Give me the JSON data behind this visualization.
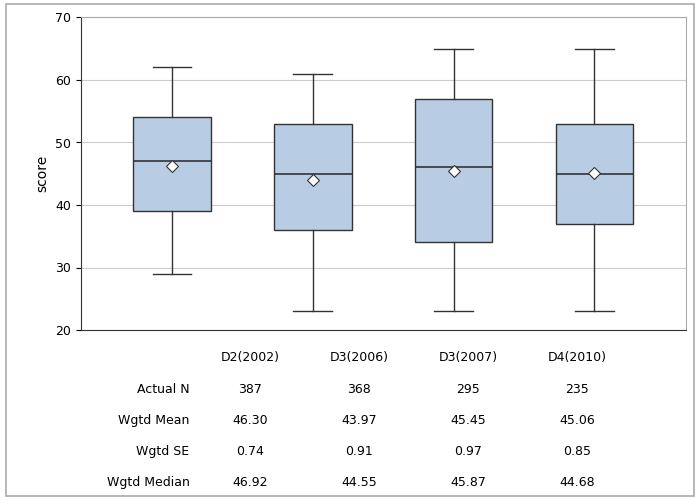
{
  "categories": [
    "D2(2002)",
    "D3(2006)",
    "D3(2007)",
    "D4(2010)"
  ],
  "boxes": [
    {
      "whislo": 29,
      "q1": 39,
      "med": 47,
      "q3": 54,
      "whishi": 62,
      "mean": 46.3
    },
    {
      "whislo": 23,
      "q1": 36,
      "med": 45,
      "q3": 53,
      "whishi": 61,
      "mean": 43.97
    },
    {
      "whislo": 23,
      "q1": 34,
      "med": 46,
      "q3": 57,
      "whishi": 65,
      "mean": 45.45
    },
    {
      "whislo": 23,
      "q1": 37,
      "med": 45,
      "q3": 53,
      "whishi": 65,
      "mean": 45.06
    }
  ],
  "actual_n": [
    387,
    368,
    295,
    235
  ],
  "wgtd_mean": [
    46.3,
    43.97,
    45.45,
    45.06
  ],
  "wgtd_se": [
    0.74,
    0.91,
    0.97,
    0.85
  ],
  "wgtd_median": [
    46.92,
    44.55,
    45.87,
    44.68
  ],
  "ylim": [
    20,
    70
  ],
  "yticks": [
    20,
    30,
    40,
    50,
    60,
    70
  ],
  "ylabel": "score",
  "box_facecolor": "#b8cce4",
  "box_edgecolor": "#333333",
  "median_color": "#333333",
  "mean_facecolor": "#ffffff",
  "mean_edgecolor": "#333333",
  "whisker_color": "#333333",
  "cap_color": "#333333",
  "grid_color": "#cccccc",
  "bg_color": "#ffffff",
  "outer_border_color": "#aaaaaa",
  "table_rows": [
    "Actual N",
    "Wgtd Mean",
    "Wgtd SE",
    "Wgtd Median"
  ],
  "figure_width": 7.0,
  "figure_height": 5.0,
  "font_size": 9
}
